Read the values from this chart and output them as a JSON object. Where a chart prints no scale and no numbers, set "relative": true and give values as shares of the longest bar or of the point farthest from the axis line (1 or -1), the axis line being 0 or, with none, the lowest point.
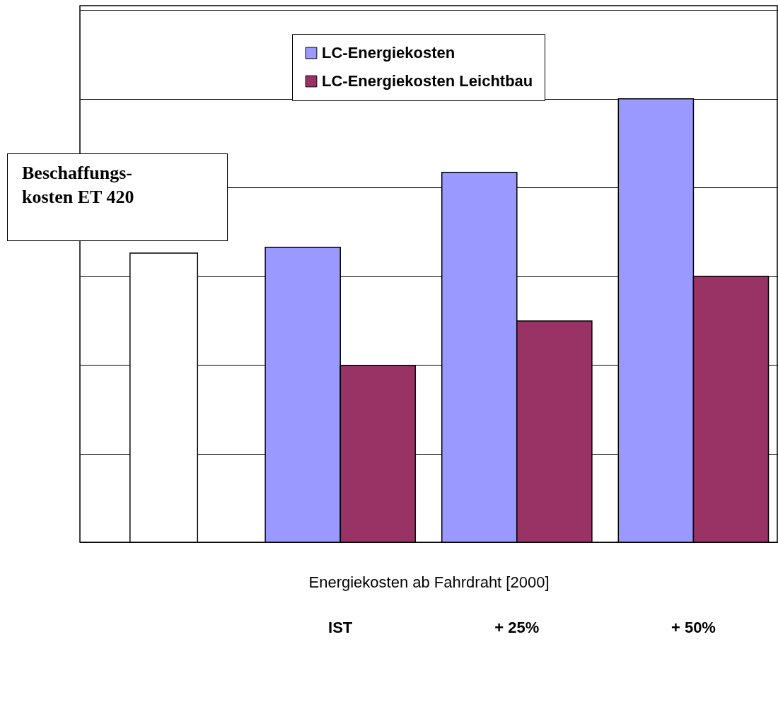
{
  "chart_data": {
    "type": "bar",
    "relative": true,
    "categories": [
      null,
      "IST",
      "+ 25%",
      "+ 50%"
    ],
    "xlabel": "Energiekosten ab Fahrdraht [2000]",
    "series": [
      {
        "color": "#ffffff",
        "values": [
          0.652,
          null,
          null,
          null
        ]
      },
      {
        "name": "LC-Energiekosten",
        "color": "#9999ff",
        "values": [
          null,
          0.665,
          0.834,
          1
        ]
      },
      {
        "name": "LC-Energiekosten Leichtbau",
        "color": "#993366",
        "values": [
          null,
          0.399,
          0.499,
          0.6
        ]
      }
    ],
    "annotations": [
      "Beschaffungs-\nkosten ET 420"
    ],
    "grid": "y",
    "legend": "top"
  }
}
